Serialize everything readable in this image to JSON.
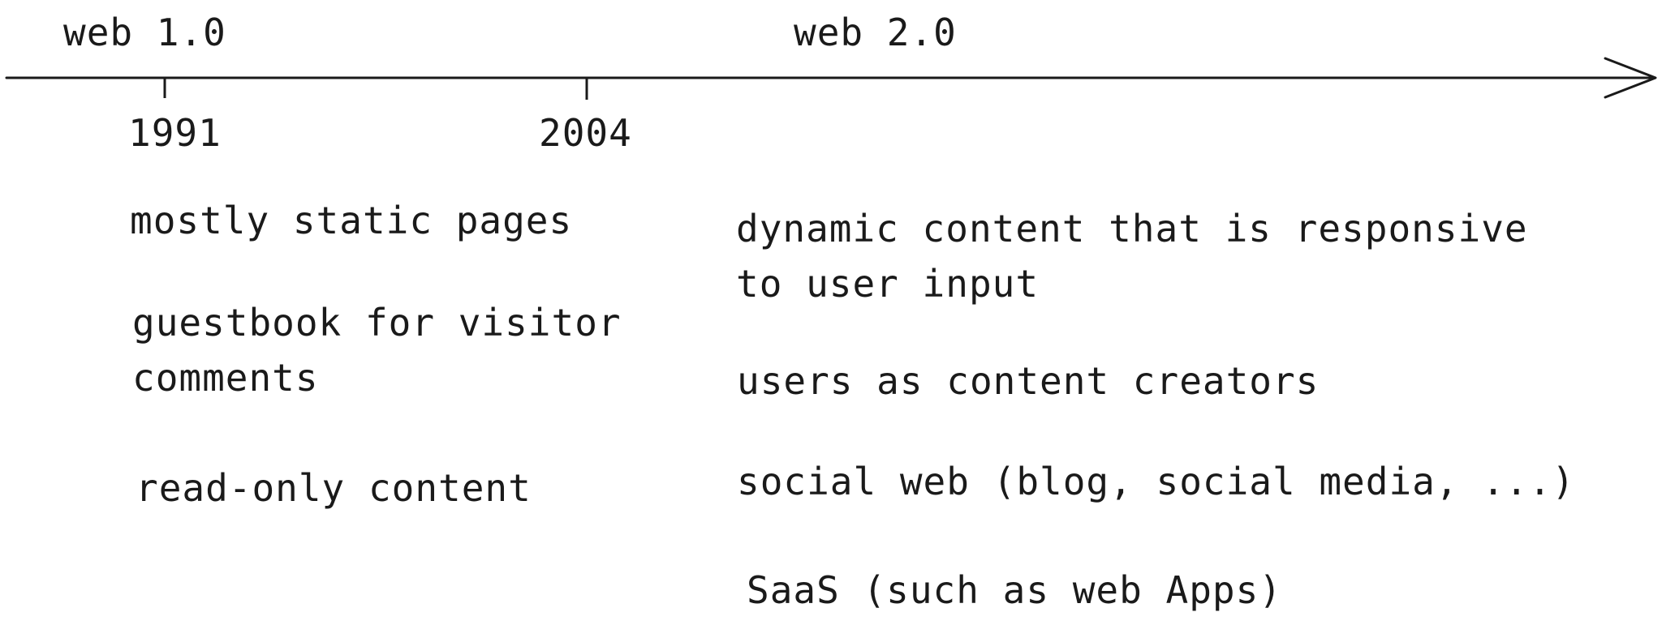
{
  "timeline": {
    "eras": [
      {
        "label": "web 1.0"
      },
      {
        "label": "web 2.0"
      }
    ],
    "ticks": [
      {
        "label": "1991"
      },
      {
        "label": "2004"
      }
    ]
  },
  "web1": {
    "items": [
      {
        "line1": "mostly static pages"
      },
      {
        "line1": "guestbook for visitor",
        "line2": "comments"
      },
      {
        "line1": "read-only content"
      }
    ]
  },
  "web2": {
    "items": [
      {
        "line1": "dynamic content that is responsive",
        "line2": "to user input"
      },
      {
        "line1": "users as content creators"
      },
      {
        "line1": "social web (blog, social media, ...)"
      },
      {
        "line1": "SaaS (such as web Apps)"
      }
    ]
  },
  "colors": {
    "ink": "#1a1a1a",
    "background": "#ffffff"
  }
}
